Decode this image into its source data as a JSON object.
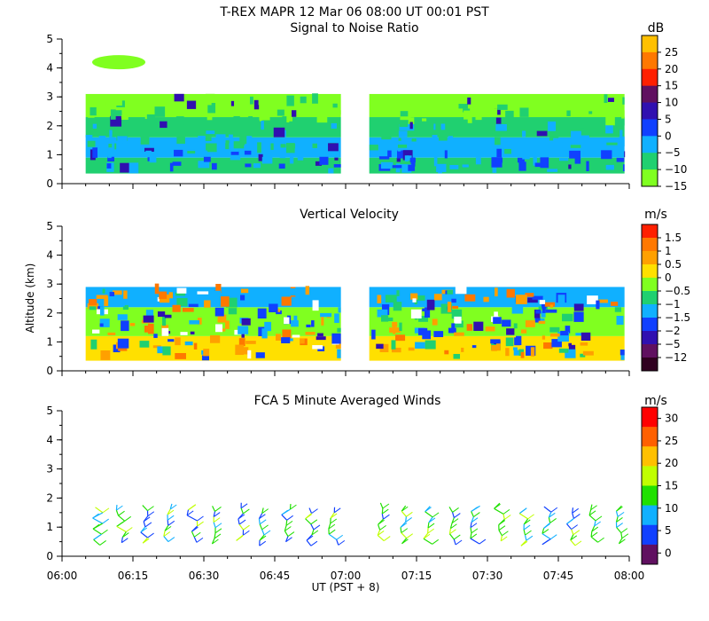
{
  "header": {
    "title": "T-REX   MAPR 12 Mar 06   08:00 UT   00:01   PST"
  },
  "chart_data": [
    {
      "type": "heatmap",
      "title": "Signal to Noise Ratio",
      "ylabel": "",
      "ylim": [
        0,
        5
      ],
      "yticks": [
        "0",
        "1",
        "2",
        "3",
        "4",
        "5"
      ],
      "xlim": [
        "06:00",
        "08:00"
      ],
      "colorbar": {
        "unit": "dB",
        "labels": [
          "25",
          "20",
          "15",
          "10",
          "5",
          "0",
          "−5",
          "−10",
          "−15"
        ],
        "colors": [
          "#ffc000",
          "#ff7800",
          "#ff2000",
          "#601060",
          "#3010b0",
          "#1040ff",
          "#10b0ff",
          "#20d070",
          "#80ff20"
        ]
      },
      "layers": [
        {
          "altitude": [
            0.35,
            0.9
          ],
          "color": "#20d070"
        },
        {
          "altitude": [
            0.9,
            1.6
          ],
          "color": "#10b0ff"
        },
        {
          "altitude": [
            1.6,
            2.3
          ],
          "color": "#20d070"
        },
        {
          "altitude": [
            2.3,
            3.1
          ],
          "color": "#80ff20"
        }
      ],
      "gap": [
        "06:59",
        "07:05"
      ],
      "data_range": [
        "06:05",
        "07:59"
      ]
    },
    {
      "type": "heatmap",
      "title": "Vertical Velocity",
      "ylabel": "Altitude (km)",
      "ylim": [
        0,
        5
      ],
      "yticks": [
        "0",
        "1",
        "2",
        "3",
        "4",
        "5"
      ],
      "xlim": [
        "06:00",
        "08:00"
      ],
      "colorbar": {
        "unit": "m/s",
        "labels": [
          "1.5",
          "1",
          "0.5",
          "0",
          "−0.5",
          "−1",
          "−1.5",
          "−2",
          "−5",
          "−12"
        ],
        "colors": [
          "#ff2000",
          "#ff7800",
          "#ffa000",
          "#ffe000",
          "#80ff20",
          "#20d070",
          "#10b0ff",
          "#1040ff",
          "#3010b0",
          "#601060",
          "#300020"
        ]
      },
      "layers": [
        {
          "altitude": [
            0.35,
            1.2
          ],
          "color": "#ffe000"
        },
        {
          "altitude": [
            1.2,
            2.2
          ],
          "color": "#80ff20"
        },
        {
          "altitude": [
            2.2,
            2.9
          ],
          "color": "#10b0ff"
        }
      ],
      "gap": [
        "06:59",
        "07:05"
      ],
      "data_range": [
        "06:05",
        "07:59"
      ]
    },
    {
      "type": "scatter",
      "title": "FCA 5 Minute Averaged Winds",
      "ylabel": "",
      "ylim": [
        0,
        5
      ],
      "yticks": [
        "0",
        "1",
        "2",
        "3",
        "4",
        "5"
      ],
      "xlim": [
        "06:00",
        "08:00"
      ],
      "xticks": [
        "06:00",
        "06:15",
        "06:30",
        "06:45",
        "07:00",
        "07:15",
        "07:30",
        "07:45",
        "08:00"
      ],
      "xlabel": "UT  (PST + 8)",
      "colorbar": {
        "unit": "m/s",
        "labels": [
          "30",
          "25",
          "20",
          "15",
          "10",
          "5",
          "0"
        ],
        "colors": [
          "#ff0000",
          "#ff6000",
          "#ffc000",
          "#c0ff00",
          "#20e000",
          "#10b0ff",
          "#1040ff",
          "#601060"
        ]
      },
      "barb_times_min": [
        7.5,
        12.5,
        17.5,
        22.5,
        27.5,
        32.5,
        37.5,
        42.5,
        47.5,
        52.5,
        57.5,
        67.5,
        72.5,
        77.5,
        82.5,
        87.5,
        92.5,
        97.5,
        102.5,
        107.5,
        112.5,
        117.5
      ],
      "barb_altitude": [
        0.55,
        1.85
      ]
    }
  ]
}
